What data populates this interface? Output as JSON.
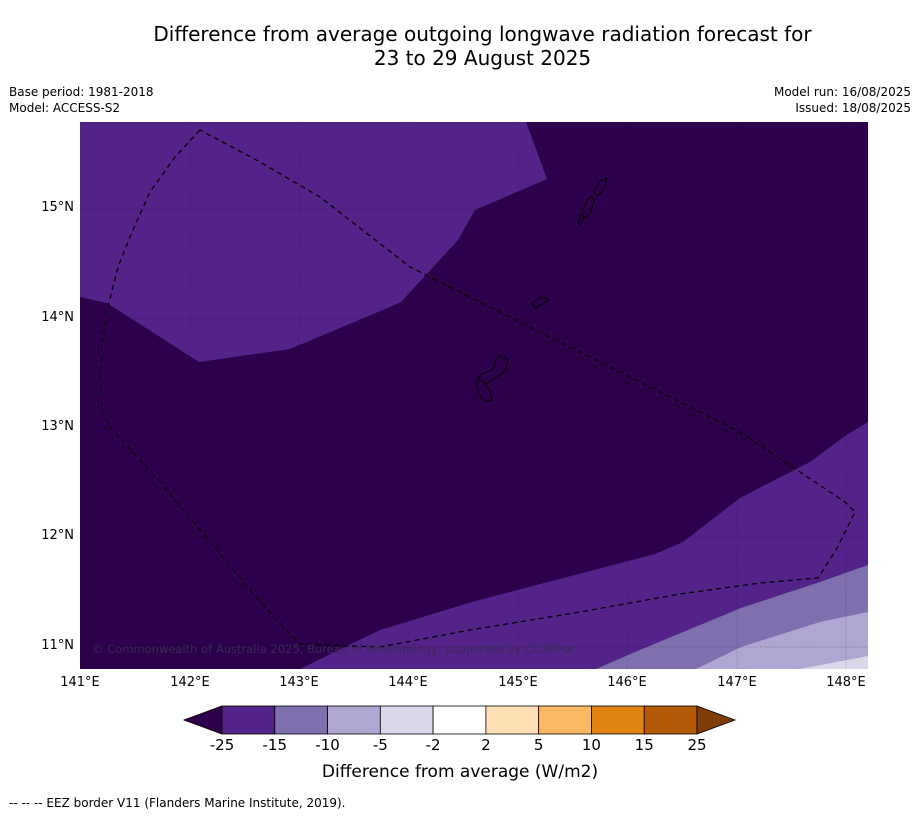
{
  "title_line1": "Difference from average outgoing longwave radiation forecast for",
  "title_line2": "23 to 29 August 2025",
  "meta_left": [
    "Base period: 1981-2018",
    "Model: ACCESS-S2"
  ],
  "meta_right": [
    "Model run: 16/08/2025",
    "Issued: 18/08/2025"
  ],
  "lat_labels": [
    "15°N",
    "14°N",
    "13°N",
    "12°N",
    "11°N"
  ],
  "lon_labels": [
    "141°E",
    "142°E",
    "143°E",
    "144°E",
    "145°E",
    "146°E",
    "147°E",
    "148°E"
  ],
  "copyright": "© Commonwealth of Australia 2025, Bureau of Meteorology, supported by COSPPac",
  "colorbar": {
    "ticks": [
      "-25",
      "-15",
      "-10",
      "-5",
      "-2",
      "2",
      "5",
      "10",
      "15",
      "25"
    ],
    "colors": [
      "#53238a",
      "#7f6fae",
      "#afa7d1",
      "#d8d8ea",
      "#ffffff",
      "#fde0b6",
      "#fdb863",
      "#e08214",
      "#b35806"
    ],
    "under_color": "#2d004b",
    "over_color": "#7f3b08",
    "label": "Difference from average (W/m2)"
  },
  "footer": "--  --  -- EEZ border V11 (Flanders Marine Institute, 2019)."
}
